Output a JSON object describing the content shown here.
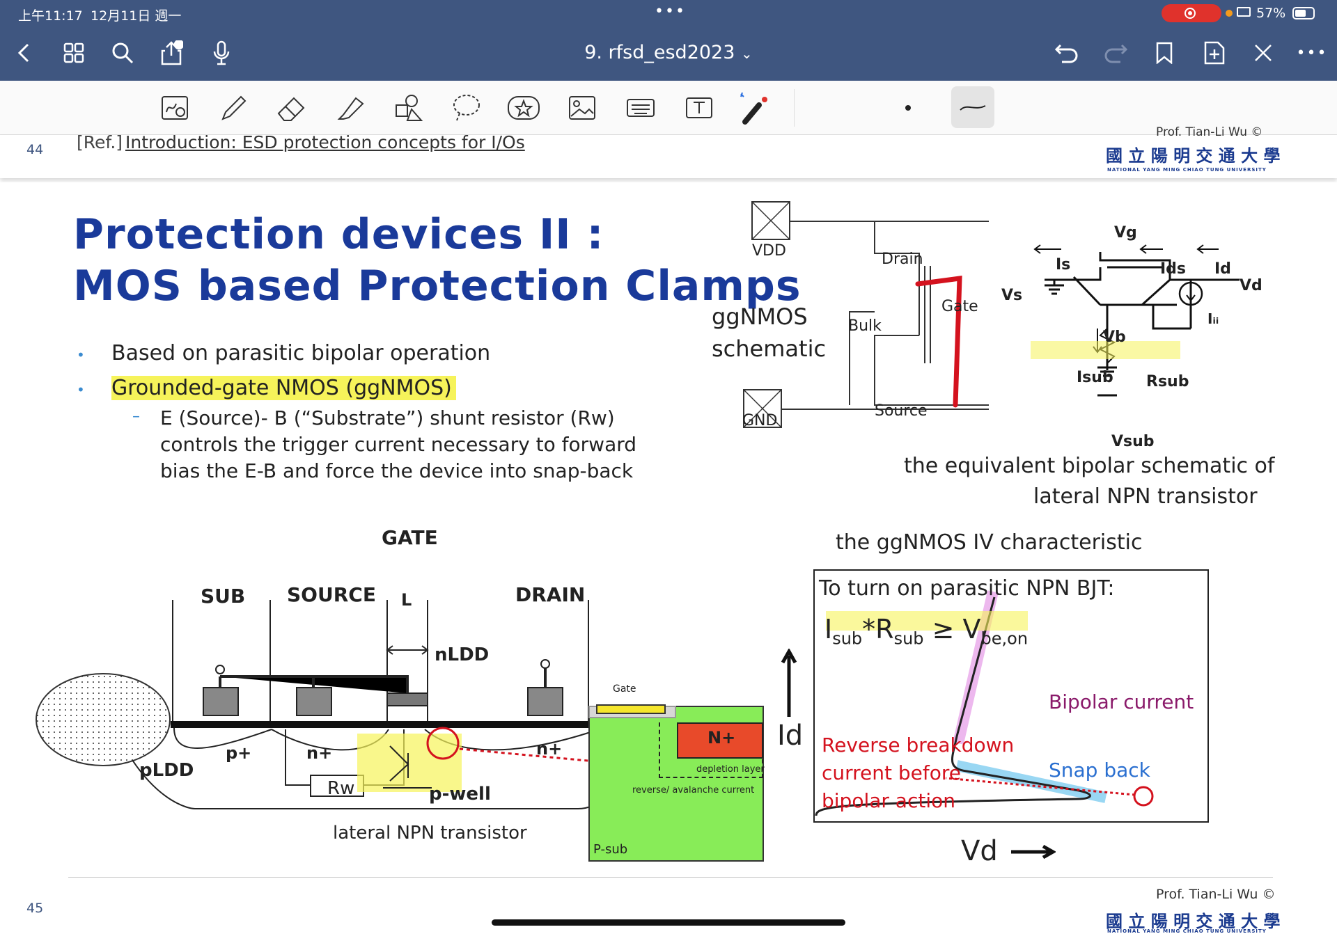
{
  "status": {
    "time": "上午11:17",
    "date": "12月11日 週一",
    "battery": "57%"
  },
  "nav": {
    "title": "9. rfsd_esd2023",
    "chevron": "⌄"
  },
  "page44": {
    "number": "44",
    "ref_prefix": "[Ref.]",
    "ref_link": "Introduction: ESD protection concepts for I/Os",
    "author_cut": "Prof. Tian-Li Wu ©",
    "univ_zh": "國 立 陽 明 交 通 大 學",
    "univ_en": "NATIONAL YANG MING CHIAO TUNG UNIVERSITY"
  },
  "slide": {
    "title_line1": "Protection devices II :",
    "title_line2": "MOS based Protection Clamps",
    "bullet1": "Based on parasitic bipolar operation",
    "bullet2": "Grounded-gate NMOS (ggNMOS)",
    "sub_line1": "E (Source)- B (“Substrate”) shunt resistor (Rw)",
    "sub_line2": "controls the trigger current necessary to forward",
    "sub_line3": "bias the E-B and force the device into snap-back",
    "sch": {
      "vdd": "VDD",
      "gnd": "GND",
      "drain": "Drain",
      "gate": "Gate",
      "bulk": "Bulk",
      "source": "Source",
      "ggnmos": "ggNMOS",
      "schematic": "schematic"
    },
    "bjt": {
      "vg": "Vg",
      "is": "Is",
      "ids": "Ids",
      "id": "Id",
      "vd": "Vd",
      "vs": "Vs",
      "vb": "Vb",
      "ili": "Iᵢᵢ",
      "isub": "Isub",
      "rsub": "Rsub",
      "vsub": "Vsub",
      "caption1": "the equivalent bipolar schematic of",
      "caption2": "lateral NPN transistor"
    },
    "cross": {
      "gate": "GATE",
      "sub": "SUB",
      "source": "SOURCE",
      "l": "L",
      "drain": "DRAIN",
      "nldd": "nLDD",
      "p_plus": "p+",
      "n_plus": "n+",
      "n_plus2": "n+",
      "pldd": "pLDD",
      "rw": "Rw",
      "pwell": "p-well",
      "caption": "lateral NPN transistor"
    },
    "inset": {
      "gate": "Gate",
      "nplus": "N+",
      "depletion": "depletion layer",
      "reverse": "reverse/ avalanche current",
      "psub": "P-sub"
    },
    "iv": {
      "heading": "the ggNMOS IV characteristic",
      "turn_on": "To turn on parasitic NPN BJT:",
      "I": "I",
      "sub1": "sub",
      "mult": "*R",
      "sub2": "sub",
      "ge": " ≥ V",
      "beon": "be,on",
      "bipolar": "Bipolar current",
      "reverse1": "Reverse breakdown",
      "reverse2": "current before",
      "reverse3": "bipolar action",
      "snap": "Snap back",
      "id": "Id",
      "vd": "Vd"
    }
  },
  "page45": {
    "number": "45",
    "author": "Prof. Tian-Li Wu ©",
    "univ_zh": "國 立 陽 明 交 通 大 學",
    "univ_en": "NATIONAL YANG MING CHIAO TUNG UNIVERSITY"
  }
}
